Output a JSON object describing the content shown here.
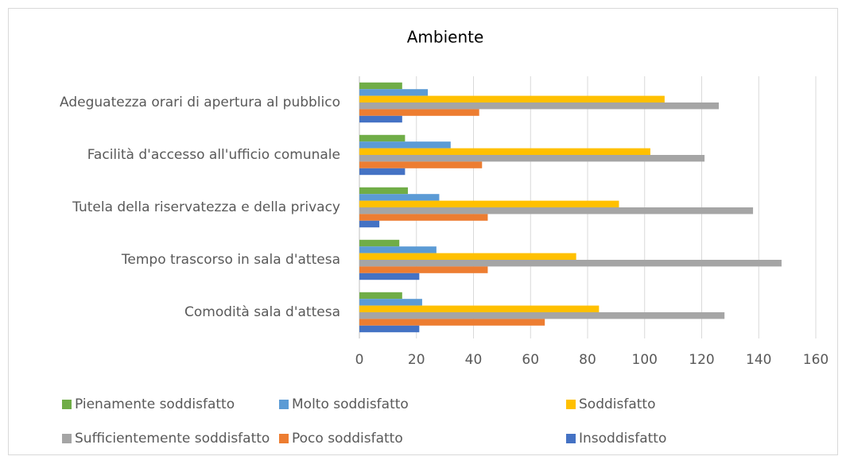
{
  "chart_data": {
    "type": "bar",
    "orientation": "horizontal",
    "title": "Ambiente",
    "categories": [
      "Adeguatezza orari di apertura al pubblico",
      "Facilità d'accesso all'ufficio comunale",
      "Tutela della riservatezza e della privacy",
      "Tempo trascorso in sala d'attesa",
      "Comodità sala d'attesa"
    ],
    "series": [
      {
        "name": "Pienamente soddisfatto",
        "color": "#70ad47",
        "values": [
          15,
          16,
          17,
          14,
          15
        ]
      },
      {
        "name": "Molto soddisfatto",
        "color": "#5b9bd5",
        "values": [
          24,
          32,
          28,
          27,
          22
        ]
      },
      {
        "name": "Soddisfatto",
        "color": "#ffc000",
        "values": [
          107,
          102,
          91,
          76,
          84
        ]
      },
      {
        "name": "Sufficientemente soddisfatto",
        "color": "#a5a5a5",
        "values": [
          126,
          121,
          138,
          148,
          128
        ]
      },
      {
        "name": "Poco soddisfatto",
        "color": "#ed7d31",
        "values": [
          42,
          43,
          45,
          45,
          65
        ]
      },
      {
        "name": "Insoddisfatto",
        "color": "#4472c4",
        "values": [
          15,
          16,
          7,
          21,
          21
        ]
      }
    ],
    "xlim": [
      0,
      160
    ],
    "xticks": [
      0,
      20,
      40,
      60,
      80,
      100,
      120,
      140,
      160
    ],
    "grid": true
  }
}
